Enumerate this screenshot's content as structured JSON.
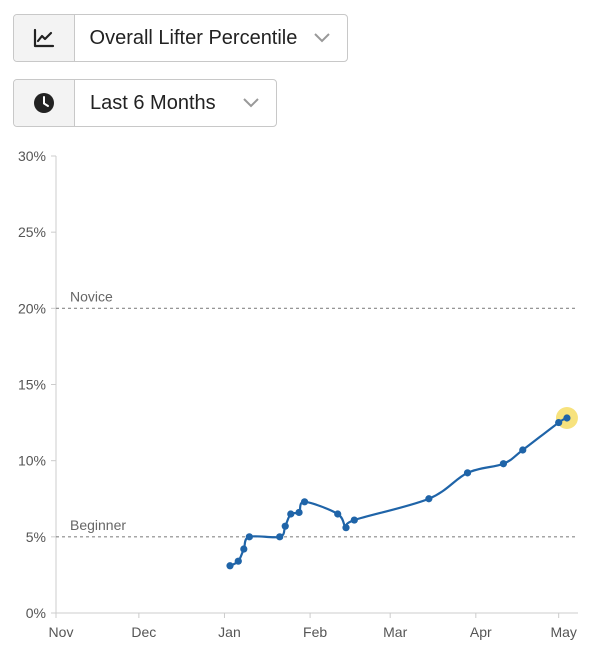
{
  "metric_select": {
    "value": "Overall Lifter Percentile",
    "icon": "line-chart-icon"
  },
  "range_select": {
    "value": "Last 6 Months",
    "icon": "clock-icon"
  },
  "colors": {
    "line": "#1f64a8",
    "highlight": "#f7e27d",
    "reference_line": "#888888",
    "axis": "#cccccc"
  },
  "chart_data": {
    "type": "line",
    "title": "",
    "xlabel": "",
    "ylabel": "",
    "x_ticks": [
      "Nov",
      "Dec",
      "Jan",
      "Feb",
      "Mar",
      "Apr",
      "May"
    ],
    "y_ticks": [
      "0%",
      "5%",
      "10%",
      "15%",
      "20%",
      "25%",
      "30%"
    ],
    "ylim": [
      0,
      30
    ],
    "xlim": [
      "2023-11-01",
      "2024-05-08"
    ],
    "grid": false,
    "reference_lines": [
      {
        "label": "Novice",
        "value": 20
      },
      {
        "label": "Beginner",
        "value": 5
      }
    ],
    "series": [
      {
        "x": [
          "2024-01-03",
          "2024-01-06",
          "2024-01-08",
          "2024-01-10",
          "2024-01-21",
          "2024-01-23",
          "2024-01-25",
          "2024-01-28",
          "2024-01-30",
          "2024-02-11",
          "2024-02-14",
          "2024-02-17",
          "2024-03-15",
          "2024-03-29",
          "2024-04-11",
          "2024-04-18",
          "2024-05-01",
          "2024-05-04"
        ],
        "values": [
          3.1,
          3.4,
          4.2,
          5.0,
          5.0,
          5.7,
          6.5,
          6.6,
          7.3,
          6.5,
          5.6,
          6.1,
          7.5,
          9.2,
          9.8,
          10.7,
          12.5,
          12.8
        ]
      }
    ],
    "highlighted_point": {
      "x": "2024-05-04",
      "value": 12.8
    }
  }
}
